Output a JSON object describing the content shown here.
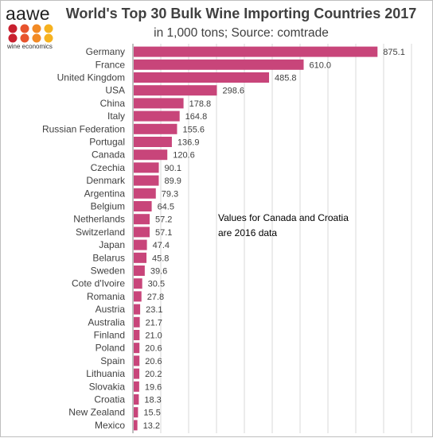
{
  "logo": {
    "text": "aawe",
    "subtext": "wine economics",
    "dot_colors": [
      "#c8202f",
      "#e8542d",
      "#f28a25",
      "#f6b21f",
      "#c8202f",
      "#e8542d",
      "#f28a25",
      "#f6b21f"
    ]
  },
  "chart_data": {
    "type": "bar",
    "orientation": "horizontal",
    "title": "World's Top 30 Bulk Wine Importing Countries 2017",
    "subtitle": "in 1,000 tons; Source: comtrade",
    "annotation": [
      "Values for Canada and Croatia",
      "are 2016 data"
    ],
    "bar_color": "#c8457a",
    "grid": true,
    "xlim": [
      0,
      1000
    ],
    "categories": [
      "Germany",
      "France",
      "United Kingdom",
      "USA",
      "China",
      "Italy",
      "Russian Federation",
      "Portugal",
      "Canada",
      "Czechia",
      "Denmark",
      "Argentina",
      "Belgium",
      "Netherlands",
      "Switzerland",
      "Japan",
      "Belarus",
      "Sweden",
      "Cote d'Ivoire",
      "Romania",
      "Austria",
      "Australia",
      "Finland",
      "Poland",
      "Spain",
      "Lithuania",
      "Slovakia",
      "Croatia",
      "New Zealand",
      "Mexico"
    ],
    "values": [
      875.1,
      610.0,
      485.8,
      298.6,
      178.8,
      164.8,
      155.6,
      136.9,
      120.6,
      90.1,
      89.9,
      79.3,
      64.5,
      57.2,
      57.1,
      47.4,
      45.8,
      39.6,
      30.5,
      27.8,
      23.1,
      21.7,
      21.0,
      20.6,
      20.6,
      20.2,
      19.6,
      18.3,
      15.5,
      13.2
    ],
    "labels": [
      "875.1",
      "610.0",
      "485.8",
      "298.6",
      "178.8",
      "164.8",
      "155.6",
      "136.9",
      "120.6",
      "90.1",
      "89.9",
      "79.3",
      "64.5",
      "57.2",
      "57.1",
      "47.4",
      "45.8",
      "39.6",
      "30.5",
      "27.8",
      "23.1",
      "21.7",
      "21.0",
      "20.6",
      "20.6",
      "20.2",
      "19.6",
      "18.3",
      "15.5",
      "13.2"
    ]
  }
}
